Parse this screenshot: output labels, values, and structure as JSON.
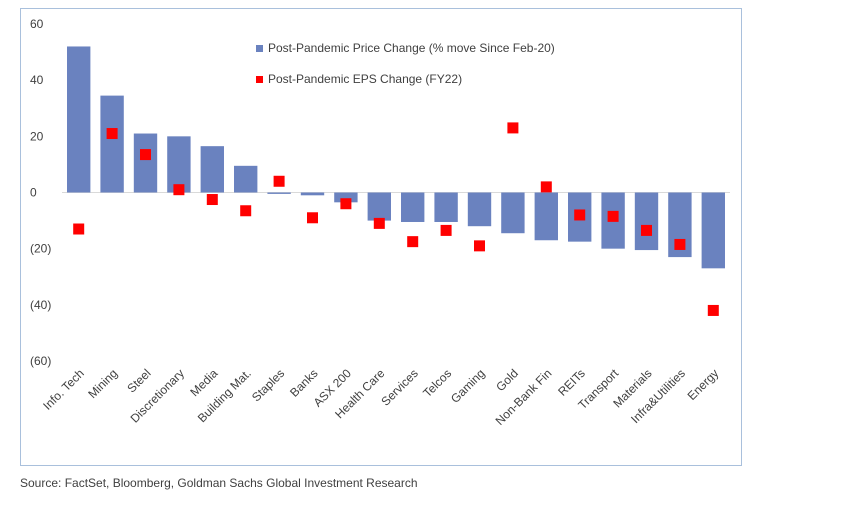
{
  "chart_data": {
    "type": "bar",
    "categories": [
      "Info. Tech",
      "Mining",
      "Steel",
      "Discretionary",
      "Media",
      "Building Mat.",
      "Staples",
      "Banks",
      "ASX 200",
      "Health Care",
      "Services",
      "Telcos",
      "Gaming",
      "Gold",
      "Non-Bank Fin",
      "REITs",
      "Transport",
      "Materials",
      "Infra&Utilities",
      "Energy"
    ],
    "series": [
      {
        "name": "Post-Pandemic Price Change (% move Since Feb-20)",
        "kind": "bar",
        "color": "#6a82bf",
        "values": [
          52,
          34.5,
          21,
          20,
          16.5,
          9.5,
          -0.5,
          -1,
          -3.5,
          -10,
          -10.5,
          -10.5,
          -12,
          -14.5,
          -17,
          -17.5,
          -20,
          -20.5,
          -23,
          -27
        ]
      },
      {
        "name": "Post-Pandemic EPS Change (FY22)",
        "kind": "marker",
        "color": "#ff0000",
        "values": [
          -13,
          21,
          13.5,
          1,
          -2.5,
          -6.5,
          4,
          -9,
          -4,
          -11,
          -17.5,
          -13.5,
          -19,
          23,
          2,
          -8,
          -8.5,
          -13.5,
          -18.5,
          -42
        ]
      }
    ],
    "y_ticks": [
      "60",
      "40",
      "20",
      "0",
      "(20)",
      "(40)",
      "(60)"
    ],
    "y_tick_values": [
      60,
      40,
      20,
      0,
      -20,
      -40,
      -60
    ],
    "ylim": [
      -60,
      60
    ],
    "grid": false,
    "legend_position": "top-center"
  },
  "footer": {
    "source": "Source: FactSet, Bloomberg, Goldman Sachs Global Investment Research"
  }
}
